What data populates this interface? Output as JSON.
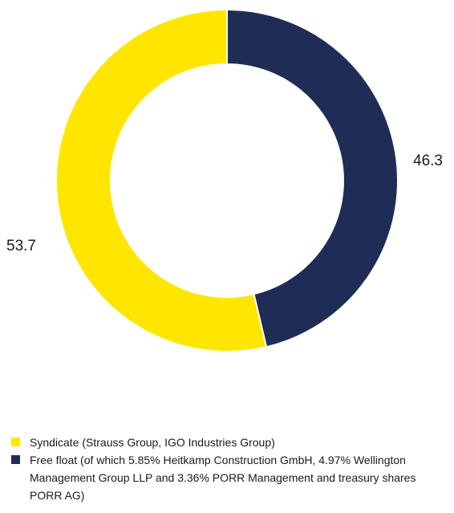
{
  "chart_data": {
    "type": "pie",
    "subtype": "donut",
    "slices": [
      {
        "label": "Free float (of which 5.85% Heitkamp Construction GmbH, 4.97% Wellington Management Group LLP and 3.36% PORR Management and treasury shares PORR AG)",
        "value": 46.3,
        "value_label": "46.3",
        "color": "#1f2d56"
      },
      {
        "label": "Syndicate (Strauss Group, IGO Industries Group)",
        "value": 53.7,
        "value_label": "53.7",
        "color": "#ffe600"
      }
    ],
    "legend": [
      {
        "label": "Syndicate (Strauss Group, IGO Industries Group)",
        "color": "#ffe600"
      },
      {
        "label": "Free float (of which 5.85% Heitkamp Construction GmbH, 4.97% Wellington Management Group LLP and 3.36% PORR Management and treasury shares PORR AG)",
        "color": "#1f2d56"
      }
    ],
    "legend_position": "bottom-left",
    "start_angle": "top",
    "direction": "clockwise"
  }
}
